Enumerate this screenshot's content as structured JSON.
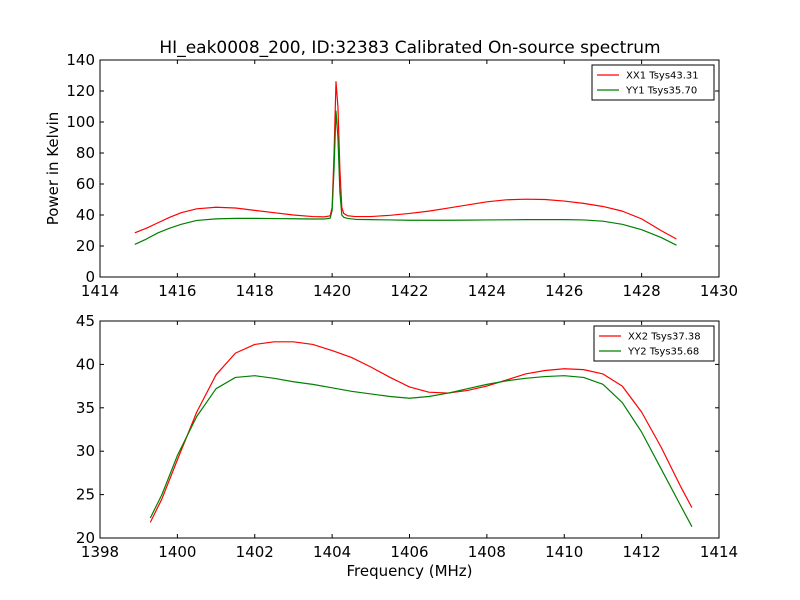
{
  "figure": {
    "title": "HI_eak0008_200, ID:32383 Calibrated On-source spectrum"
  },
  "chart_data": [
    {
      "type": "line",
      "title": "HI_eak0008_200, ID:32383 Calibrated On-source spectrum",
      "xlabel": "",
      "ylabel": "Power in Kelvin",
      "xlim": [
        1414,
        1430
      ],
      "ylim": [
        0,
        140
      ],
      "xticks": [
        "1414",
        "1416",
        "1418",
        "1420",
        "1422",
        "1424",
        "1426",
        "1428",
        "1430"
      ],
      "yticks": [
        "0",
        "20",
        "40",
        "60",
        "80",
        "100",
        "120",
        "140"
      ],
      "grid": false,
      "legend_position": "top-right",
      "series": [
        {
          "name": "XX1 Tsys43.31",
          "color": "#ff0000",
          "x": [
            1414.9,
            1415.2,
            1415.5,
            1415.8,
            1416.1,
            1416.5,
            1417.0,
            1417.5,
            1418.0,
            1418.5,
            1419.0,
            1419.5,
            1419.8,
            1419.95,
            1420.0,
            1420.05,
            1420.1,
            1420.15,
            1420.2,
            1420.25,
            1420.3,
            1420.4,
            1420.6,
            1421.0,
            1421.5,
            1422.0,
            1422.5,
            1423.0,
            1423.5,
            1424.0,
            1424.5,
            1425.0,
            1425.5,
            1426.0,
            1426.5,
            1427.0,
            1427.5,
            1428.0,
            1428.5,
            1428.9
          ],
          "y": [
            28.5,
            31.5,
            35.0,
            38.5,
            41.5,
            44.0,
            45.0,
            44.5,
            43.0,
            41.5,
            40.0,
            39.0,
            38.8,
            39.5,
            45.0,
            80.0,
            126.0,
            110.0,
            70.0,
            45.0,
            41.0,
            39.5,
            39.0,
            39.0,
            39.8,
            41.0,
            42.5,
            44.5,
            46.5,
            48.5,
            49.8,
            50.2,
            50.0,
            49.0,
            47.5,
            45.5,
            42.5,
            37.5,
            30.0,
            24.5
          ]
        },
        {
          "name": "YY1 Tsys35.70",
          "color": "#008000",
          "x": [
            1414.9,
            1415.2,
            1415.5,
            1415.8,
            1416.1,
            1416.5,
            1417.0,
            1417.5,
            1418.0,
            1418.5,
            1419.0,
            1419.5,
            1419.8,
            1419.95,
            1420.0,
            1420.05,
            1420.1,
            1420.15,
            1420.2,
            1420.25,
            1420.3,
            1420.4,
            1420.6,
            1421.0,
            1421.5,
            1422.0,
            1422.5,
            1423.0,
            1423.5,
            1424.0,
            1424.5,
            1425.0,
            1425.5,
            1426.0,
            1426.5,
            1427.0,
            1427.5,
            1428.0,
            1428.5,
            1428.9
          ],
          "y": [
            21.0,
            24.5,
            28.5,
            31.5,
            34.0,
            36.5,
            37.5,
            37.8,
            37.8,
            37.7,
            37.6,
            37.4,
            37.4,
            38.0,
            43.0,
            70.0,
            107.0,
            90.0,
            55.0,
            40.0,
            38.5,
            37.8,
            37.2,
            37.0,
            36.8,
            36.6,
            36.6,
            36.6,
            36.7,
            36.8,
            36.9,
            37.0,
            37.0,
            37.0,
            36.8,
            36.0,
            34.0,
            30.5,
            25.5,
            20.5
          ]
        }
      ]
    },
    {
      "type": "line",
      "title": "",
      "xlabel": "Frequency (MHz)",
      "ylabel": "",
      "xlim": [
        1398,
        1414
      ],
      "ylim": [
        20,
        45
      ],
      "xticks": [
        "1398",
        "1400",
        "1402",
        "1404",
        "1406",
        "1408",
        "1410",
        "1412",
        "1414"
      ],
      "yticks": [
        "20",
        "25",
        "30",
        "35",
        "40",
        "45"
      ],
      "grid": false,
      "legend_position": "top-right",
      "series": [
        {
          "name": "XX2 Tsys37.38",
          "color": "#ff0000",
          "x": [
            1399.3,
            1399.6,
            1400.0,
            1400.5,
            1401.0,
            1401.5,
            1402.0,
            1402.5,
            1403.0,
            1403.5,
            1404.0,
            1404.5,
            1405.0,
            1405.5,
            1406.0,
            1406.5,
            1407.0,
            1407.5,
            1408.0,
            1408.5,
            1409.0,
            1409.5,
            1410.0,
            1410.5,
            1411.0,
            1411.5,
            1412.0,
            1412.5,
            1413.0,
            1413.3
          ],
          "y": [
            21.8,
            24.5,
            29.0,
            34.5,
            38.8,
            41.3,
            42.3,
            42.6,
            42.6,
            42.3,
            41.6,
            40.8,
            39.7,
            38.5,
            37.4,
            36.8,
            36.7,
            37.0,
            37.5,
            38.2,
            38.9,
            39.3,
            39.5,
            39.4,
            38.9,
            37.5,
            34.5,
            30.5,
            26.0,
            23.5
          ]
        },
        {
          "name": "YY2 Tsys35.68",
          "color": "#008000",
          "x": [
            1399.3,
            1399.6,
            1400.0,
            1400.5,
            1401.0,
            1401.5,
            1402.0,
            1402.5,
            1403.0,
            1403.5,
            1404.0,
            1404.5,
            1405.0,
            1405.5,
            1406.0,
            1406.5,
            1407.0,
            1407.5,
            1408.0,
            1408.5,
            1409.0,
            1409.5,
            1410.0,
            1410.5,
            1411.0,
            1411.5,
            1412.0,
            1412.5,
            1413.0,
            1413.3
          ],
          "y": [
            22.3,
            25.0,
            29.5,
            34.0,
            37.2,
            38.5,
            38.7,
            38.4,
            38.0,
            37.7,
            37.3,
            36.9,
            36.6,
            36.3,
            36.1,
            36.3,
            36.7,
            37.2,
            37.7,
            38.1,
            38.4,
            38.6,
            38.7,
            38.5,
            37.7,
            35.6,
            32.2,
            28.0,
            23.8,
            21.3
          ]
        }
      ]
    }
  ]
}
